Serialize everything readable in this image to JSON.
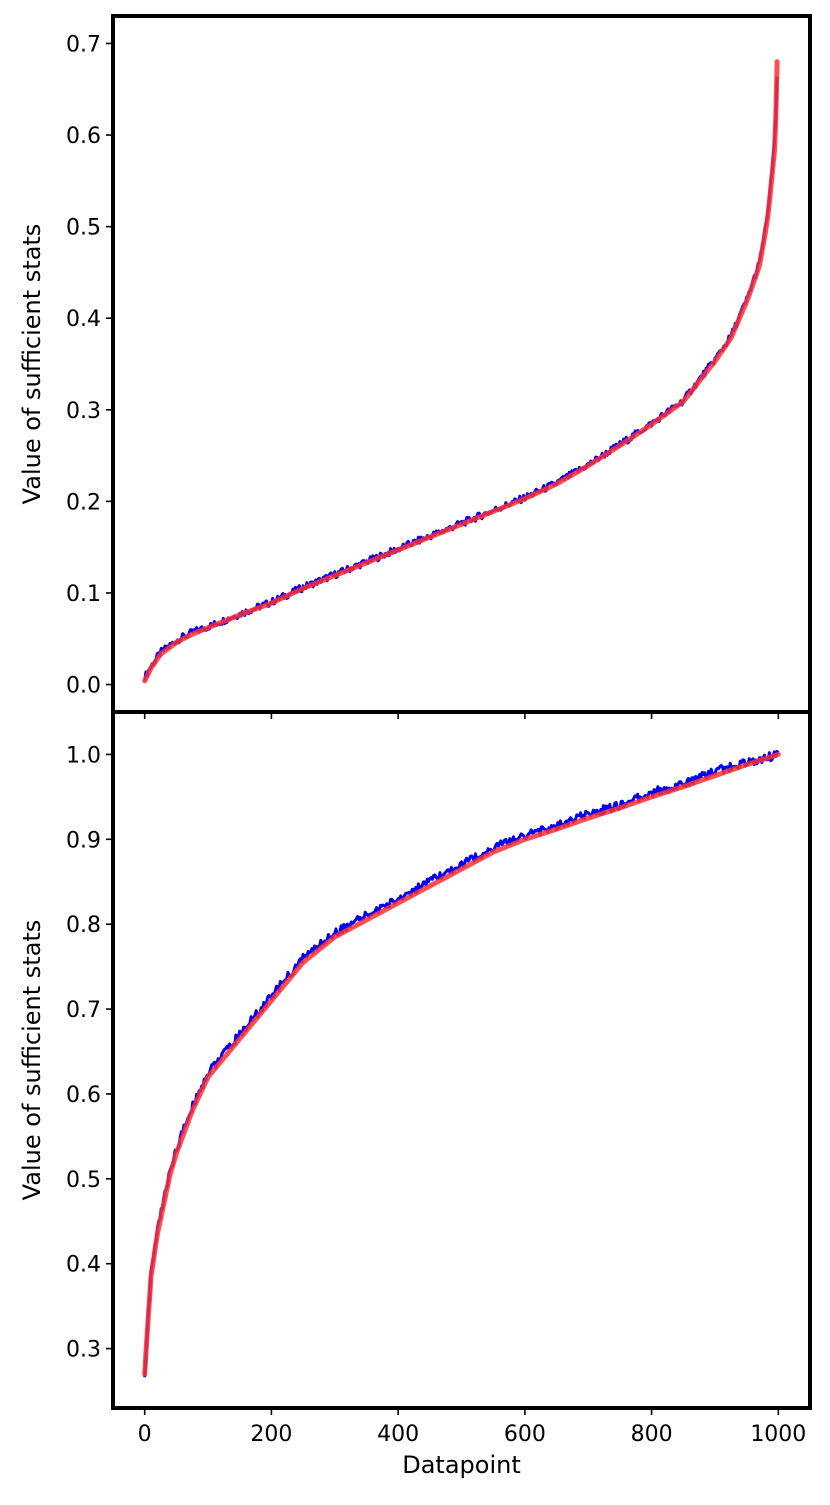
{
  "chart_data": [
    {
      "type": "line",
      "ylabel": "Value of sufficient stats",
      "xlabel": "",
      "xlim": [
        -50,
        1050
      ],
      "ylim": [
        -0.03,
        0.73
      ],
      "xticks": [
        0,
        200,
        400,
        600,
        800,
        1000
      ],
      "xtick_labels_shown": false,
      "yticks": [
        "0.0",
        "0.1",
        "0.2",
        "0.3",
        "0.4",
        "0.5",
        "0.6",
        "0.7"
      ],
      "x": [
        0,
        10,
        25,
        50,
        75,
        100,
        150,
        200,
        250,
        300,
        350,
        400,
        450,
        500,
        550,
        600,
        650,
        700,
        750,
        800,
        850,
        900,
        925,
        950,
        960,
        970,
        980,
        985,
        990,
        995,
        999
      ],
      "series": [
        {
          "values": [
            0.008,
            0.02,
            0.035,
            0.048,
            0.057,
            0.063,
            0.077,
            0.09,
            0.106,
            0.12,
            0.134,
            0.148,
            0.162,
            0.176,
            0.19,
            0.204,
            0.22,
            0.24,
            0.262,
            0.285,
            0.31,
            0.355,
            0.38,
            0.42,
            0.44,
            0.46,
            0.5,
            0.525,
            0.56,
            0.6,
            0.68
          ],
          "color": "#0000ff",
          "noise": 0.004
        },
        {
          "values": [
            0.004,
            0.018,
            0.033,
            0.046,
            0.055,
            0.062,
            0.076,
            0.089,
            0.105,
            0.119,
            0.133,
            0.147,
            0.161,
            0.175,
            0.189,
            0.203,
            0.219,
            0.239,
            0.261,
            0.284,
            0.309,
            0.353,
            0.378,
            0.418,
            0.437,
            0.457,
            0.495,
            0.52,
            0.555,
            0.59,
            0.71
          ],
          "color": "#ff3030"
        }
      ]
    },
    {
      "type": "line",
      "ylabel": "Value of sufficient stats",
      "xlabel": "Datapoint",
      "xlim": [
        -50,
        1050
      ],
      "ylim": [
        0.23,
        1.05
      ],
      "xticks": [
        0,
        200,
        400,
        600,
        800,
        1000
      ],
      "xtick_labels": [
        "0",
        "200",
        "400",
        "600",
        "800",
        "1000"
      ],
      "yticks": [
        "0.3",
        "0.4",
        "0.5",
        "0.6",
        "0.7",
        "0.8",
        "0.9",
        "1.0"
      ],
      "x": [
        0,
        5,
        10,
        20,
        30,
        40,
        50,
        75,
        100,
        150,
        200,
        250,
        300,
        350,
        400,
        450,
        500,
        550,
        600,
        650,
        700,
        750,
        800,
        850,
        900,
        950,
        1000
      ],
      "series": [
        {
          "values": [
            0.27,
            0.33,
            0.39,
            0.44,
            0.475,
            0.51,
            0.535,
            0.585,
            0.625,
            0.67,
            0.715,
            0.76,
            0.79,
            0.81,
            0.83,
            0.85,
            0.87,
            0.89,
            0.905,
            0.915,
            0.93,
            0.94,
            0.955,
            0.965,
            0.98,
            0.99,
            1.0
          ],
          "color": "#0000ff",
          "noise": 0.005
        },
        {
          "values": [
            0.27,
            0.33,
            0.385,
            0.435,
            0.47,
            0.505,
            0.53,
            0.58,
            0.62,
            0.665,
            0.71,
            0.755,
            0.785,
            0.805,
            0.825,
            0.845,
            0.865,
            0.885,
            0.9,
            0.912,
            0.925,
            0.937,
            0.95,
            0.962,
            0.975,
            0.988,
            1.0
          ],
          "color": "#ff3030"
        }
      ]
    }
  ]
}
